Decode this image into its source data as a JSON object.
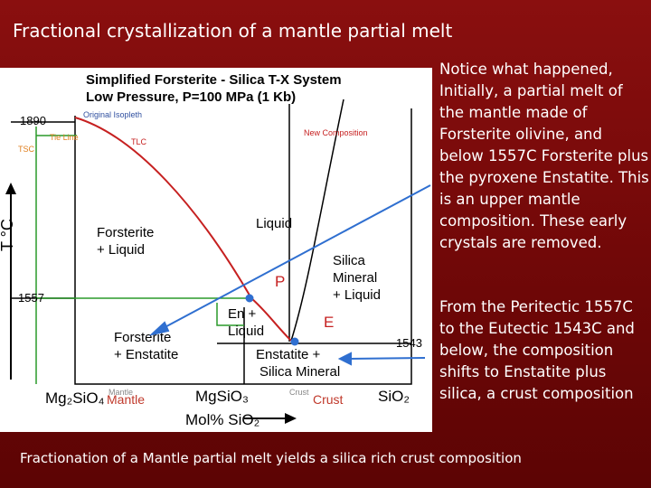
{
  "header": {
    "title": "Fractional crystallization of a mantle partial melt"
  },
  "notes": [
    "Notice what happened, Initially, a partial melt of the mantle made of Forsterite olivine, and below 1557C Forsterite plus the pyroxene Enstatite. This is an upper mantle composition.  These early crystals are removed.",
    "From the Peritectic 1557C to the Eutectic 1543C and below, the composition shifts to Enstatite plus silica, a crust composition"
  ],
  "footer": "Fractionation of a Mantle partial melt yields a silica rich crust composition",
  "diagram": {
    "title_line1": "Simplified Forsterite - Silica T-X System",
    "title_line2": "Low Pressure, P=100 MPa  (1 Kb)",
    "t1890": "1890",
    "t1557": "1557",
    "t1543": "1543",
    "original_isopleth": "Original Isopleth",
    "tie_line": "Tie Line",
    "tsc": "TSC",
    "tlc": "TLC",
    "new_composition": "New Composition",
    "liquid": "Liquid",
    "fo_liq": [
      "Forsterite",
      "+ Liquid"
    ],
    "si_liq": [
      "Silica",
      "Mineral",
      "+ Liquid"
    ],
    "p": "P",
    "e": "E",
    "en_liq": [
      "En +",
      "Liquid"
    ],
    "fo_en": [
      "Forsterite",
      "+ Enstatite"
    ],
    "en_si": [
      "Enstatite +",
      "Silica Mineral"
    ],
    "fo": "Mg₂SiO₄",
    "en": "MgSiO₃",
    "si": "SiO₂",
    "xaxis": "Mol% SiO₂",
    "yaxis": "T °C",
    "mantle_small": "Mantle",
    "crust_small": "Crust",
    "mantle": "Mantle",
    "crust": "Crust"
  }
}
